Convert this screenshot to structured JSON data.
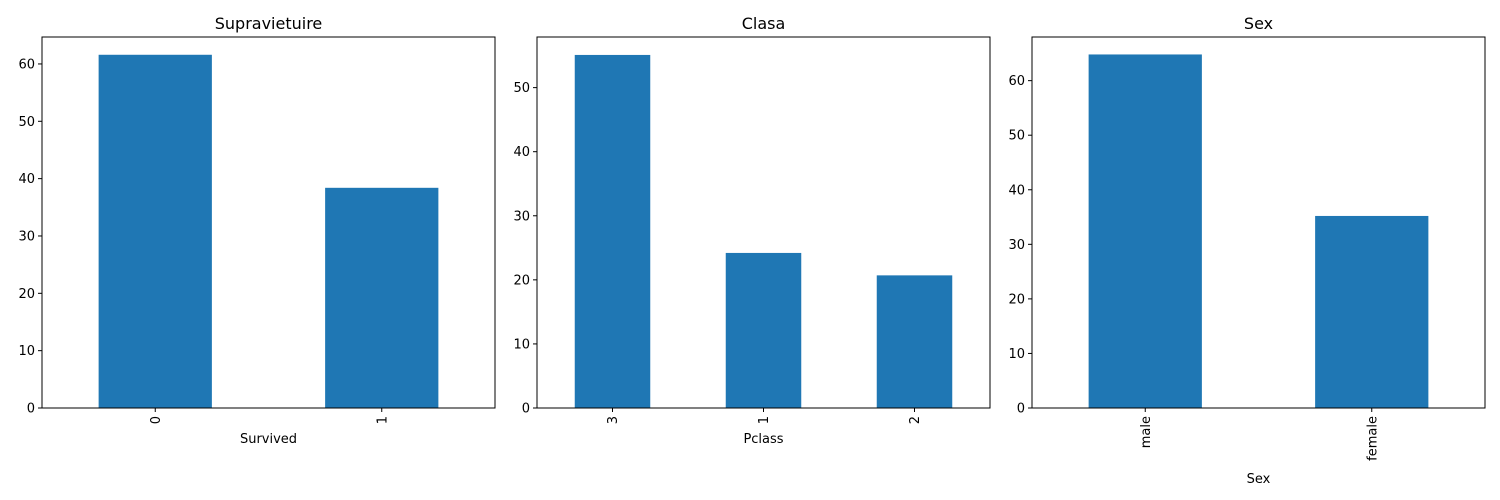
{
  "chart_data": [
    {
      "type": "bar",
      "title": "Supravietuire",
      "xlabel": "Survived",
      "ylabel": "",
      "categories": [
        "0",
        "1"
      ],
      "values": [
        61.6,
        38.4
      ],
      "ylim": [
        0,
        64.7
      ],
      "yticks": [
        0,
        10,
        20,
        30,
        40,
        50,
        60
      ],
      "grid": false,
      "bar_color": "#1f77b4"
    },
    {
      "type": "bar",
      "title": "Clasa",
      "xlabel": "Pclass",
      "ylabel": "",
      "categories": [
        "3",
        "1",
        "2"
      ],
      "values": [
        55.1,
        24.2,
        20.7
      ],
      "ylim": [
        0,
        57.9
      ],
      "yticks": [
        0,
        10,
        20,
        30,
        40,
        50
      ],
      "grid": false,
      "bar_color": "#1f77b4"
    },
    {
      "type": "bar",
      "title": "Sex",
      "xlabel": "Sex",
      "ylabel": "",
      "categories": [
        "male",
        "female"
      ],
      "values": [
        64.8,
        35.2
      ],
      "ylim": [
        0,
        68.0
      ],
      "yticks": [
        0,
        10,
        20,
        30,
        40,
        50,
        60
      ],
      "grid": false,
      "bar_color": "#1f77b4"
    }
  ]
}
